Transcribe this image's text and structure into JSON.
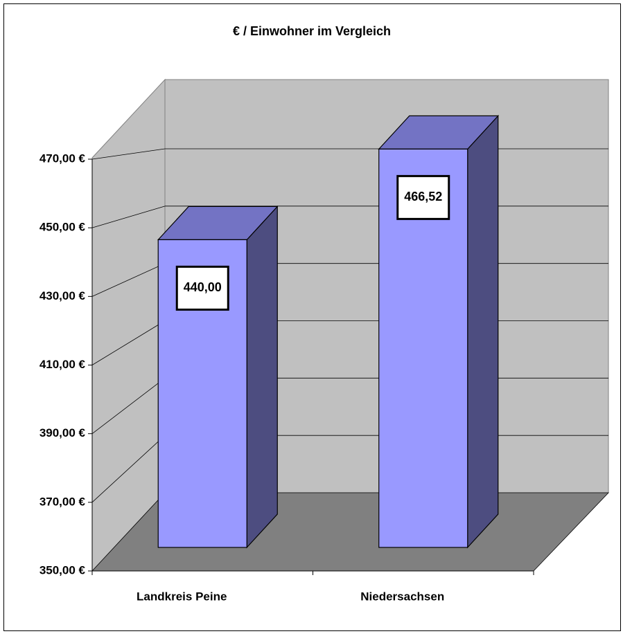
{
  "chart_data": {
    "type": "bar3d",
    "title": "€ / Einwohner im Vergleich",
    "categories": [
      "Landkreis Peine",
      "Niedersachsen"
    ],
    "values": [
      440.0,
      466.52
    ],
    "value_labels": [
      "440,00",
      "466,52"
    ],
    "ylim": [
      350,
      470
    ],
    "yticks": [
      {
        "value": 350,
        "label": "350,00 €"
      },
      {
        "value": 370,
        "label": "370,00 €"
      },
      {
        "value": 390,
        "label": "390,00 €"
      },
      {
        "value": 410,
        "label": "410,00 €"
      },
      {
        "value": 430,
        "label": "430,00 €"
      },
      {
        "value": 450,
        "label": "450,00 €"
      },
      {
        "value": 470,
        "label": "470,00 €"
      }
    ],
    "grid": true,
    "colors": {
      "front": "#9999ff",
      "top": "#7373c4",
      "side": "#4d4d80",
      "wall": "#c0c0c0",
      "floor": "#808080"
    }
  }
}
